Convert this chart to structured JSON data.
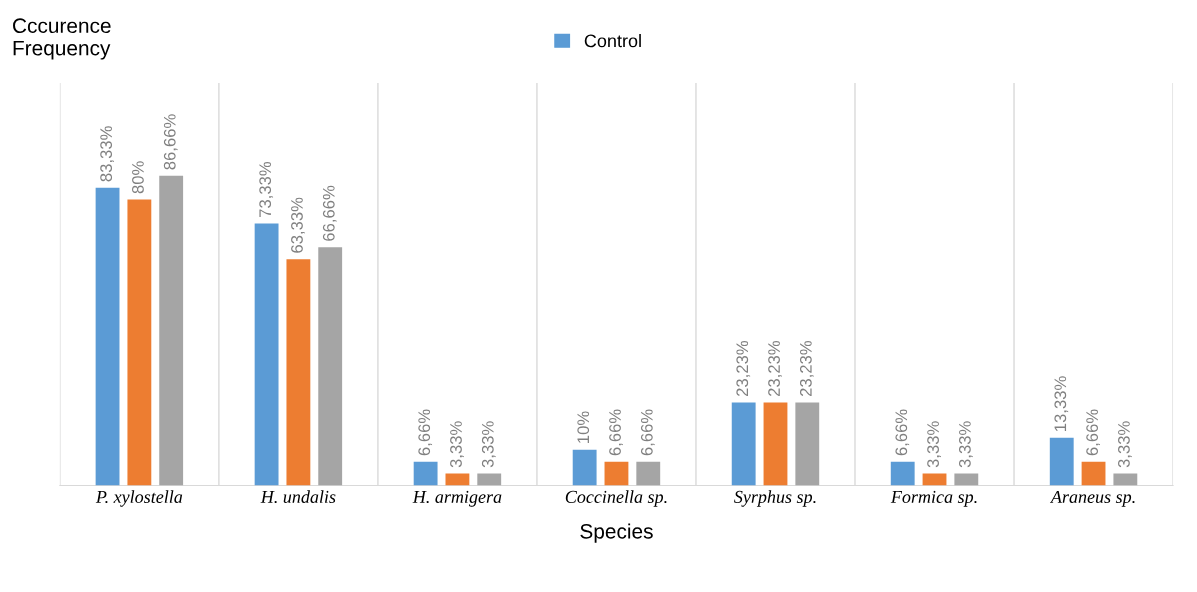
{
  "chart_data": {
    "type": "bar",
    "annotations": [
      "Cccurence\nFrequency"
    ],
    "xlabel": "Species",
    "categories": [
      "P. xylostella",
      "H. undalis",
      "H. armigera",
      "Coccinella sp.",
      "Syrphus sp.",
      "Formica sp.",
      "Araneus sp."
    ],
    "series": [
      {
        "name": "Control",
        "color": "#5b9bd5",
        "values": [
          83.33,
          73.33,
          6.66,
          10,
          23.23,
          6.66,
          13.33
        ],
        "value_labels": [
          "83,33%",
          "73,33%",
          "6,66%",
          "10%",
          "23,23%",
          "6,66%",
          "13,33%"
        ]
      },
      {
        "color": "#ed7d31",
        "values": [
          80,
          63.33,
          3.33,
          6.66,
          23.23,
          3.33,
          6.66
        ],
        "value_labels": [
          "80%",
          "63,33%",
          "3,33%",
          "6,66%",
          "23,23%",
          "3,33%",
          "6,66%"
        ]
      },
      {
        "color": "#a5a5a5",
        "values": [
          86.66,
          66.66,
          3.33,
          6.66,
          23.23,
          3.33,
          3.33
        ],
        "value_labels": [
          "86,66%",
          "66,66%",
          "3,33%",
          "6,66%",
          "23,23%",
          "3,33%",
          "3,33%"
        ]
      }
    ],
    "grid": "x",
    "legend": "top"
  }
}
